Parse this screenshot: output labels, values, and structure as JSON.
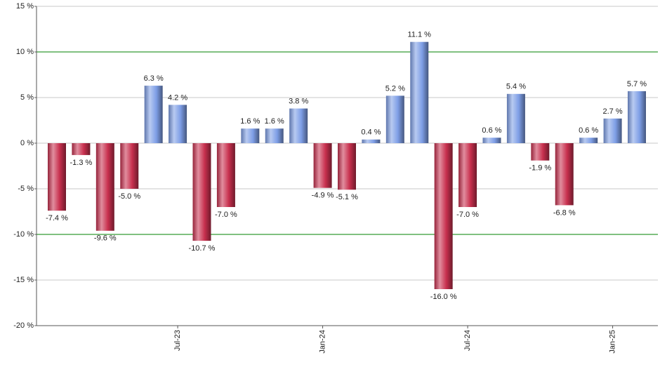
{
  "chart_data": {
    "type": "bar",
    "categories": [
      null,
      null,
      null,
      null,
      null,
      "Jul-23",
      null,
      null,
      null,
      null,
      null,
      "Jan-24",
      null,
      null,
      null,
      null,
      null,
      "Jul-24",
      null,
      null,
      null,
      null,
      null,
      "Jan-25",
      null
    ],
    "values": [
      -7.4,
      -1.3,
      -9.6,
      -5.0,
      6.3,
      4.2,
      -10.7,
      -7.0,
      1.6,
      1.6,
      3.8,
      -4.9,
      -5.1,
      0.4,
      5.2,
      11.1,
      -16.0,
      -7.0,
      0.6,
      5.4,
      -1.9,
      -6.8,
      0.6,
      2.7,
      5.7
    ],
    "value_labels": [
      "-7.4 %",
      "-1.3 %",
      "-9.6 %",
      "-5.0 %",
      "6.3 %",
      "4.2 %",
      "-10.7 %",
      "-7.0 %",
      "1.6 %",
      "1.6 %",
      "3.8 %",
      "-4.9 %",
      "-5.1 %",
      "0.4 %",
      "5.2 %",
      "11.1 %",
      "-16.0 %",
      "-7.0 %",
      "0.6 %",
      "5.4 %",
      "-1.9 %",
      "-6.8 %",
      "0.6 %",
      "2.7 %",
      "5.7 %"
    ],
    "positive_color": "#7e9ee6",
    "negative_color": "#c8304e",
    "ylim": [
      -20,
      15
    ],
    "yticks": [
      {
        "value": -20,
        "label": "-20 %"
      },
      {
        "value": -15,
        "label": "-15 %"
      },
      {
        "value": -10,
        "label": "-10 %"
      },
      {
        "value": -5,
        "label": "-5 %"
      },
      {
        "value": 0,
        "label": "0 %"
      },
      {
        "value": 5,
        "label": "5 %"
      },
      {
        "value": 10,
        "label": "10 %"
      },
      {
        "value": 15,
        "label": "15 %"
      }
    ],
    "grid": true,
    "reference_lines": [
      {
        "value": -10,
        "color": "#008000"
      },
      {
        "value": 10,
        "color": "#008000"
      }
    ]
  }
}
